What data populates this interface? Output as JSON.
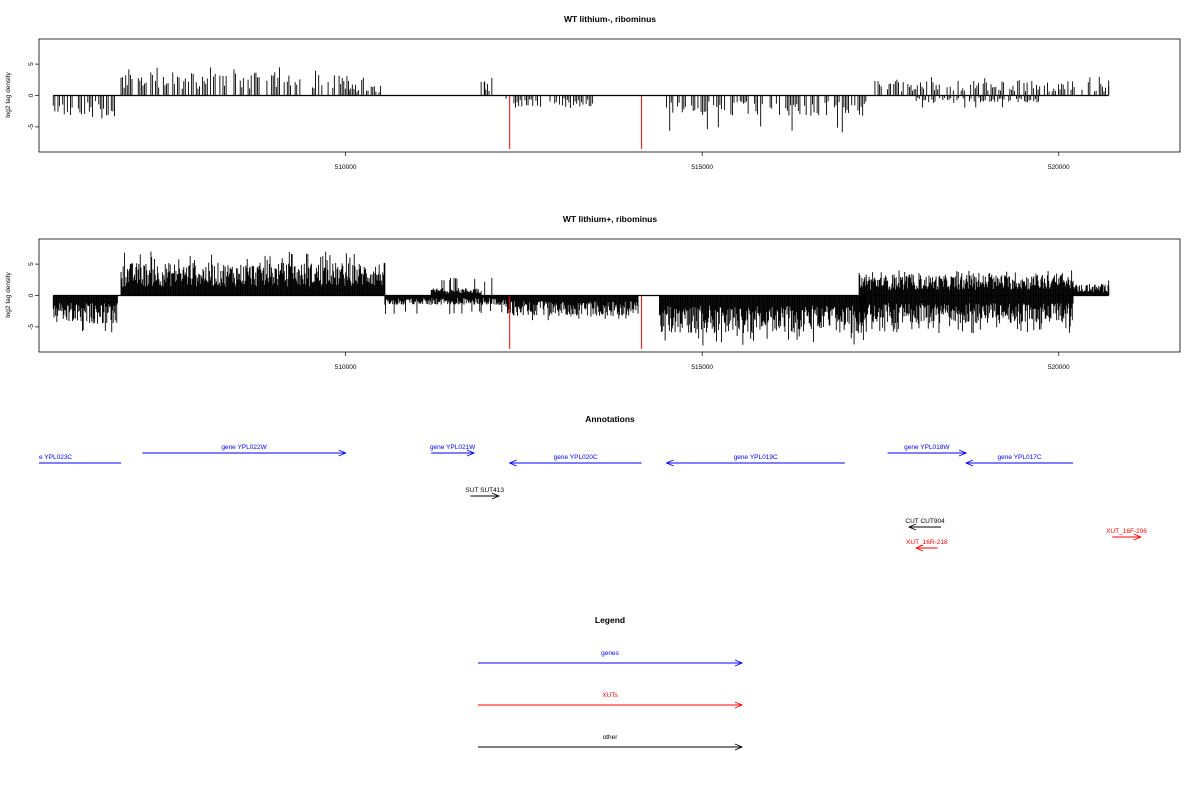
{
  "chart_data": [
    {
      "type": "bar",
      "title": "WT lithium-, ribominus",
      "ylabel": "log2 tag density",
      "xlim": [
        505700,
        521700
      ],
      "ylim": [
        -9,
        9
      ],
      "x_ticks": [
        510000,
        515000,
        520000
      ],
      "y_ticks": [
        -5,
        0,
        5
      ],
      "grid": false,
      "highlight_color": "#ff0000",
      "bar_color": "#000000",
      "highlights": [
        {
          "x": 512300,
          "y": -8.5
        },
        {
          "x": 514150,
          "y": -8.5
        }
      ],
      "density": [
        {
          "x1": 505900,
          "x2": 506800,
          "strand": "minus",
          "mean": 2.2,
          "max": 4.0
        },
        {
          "x1": 506850,
          "x2": 510050,
          "strand": "plus",
          "mean": 2.5,
          "max": 4.8
        },
        {
          "x1": 510050,
          "x2": 510500,
          "strand": "plus",
          "mean": 1.2,
          "max": 3.0
        },
        {
          "x1": 511900,
          "x2": 512050,
          "strand": "plus",
          "mean": 1.8,
          "max": 2.5
        },
        {
          "x1": 512250,
          "x2": 513500,
          "strand": "minus",
          "mean": 1.2,
          "max": 2.0
        },
        {
          "x1": 514500,
          "x2": 517300,
          "strand": "minus",
          "mean": 2.2,
          "max": 6.0
        },
        {
          "x1": 517400,
          "x2": 520700,
          "strand": "plus",
          "mean": 1.6,
          "max": 3.0
        },
        {
          "x1": 518000,
          "x2": 519800,
          "strand": "minus",
          "mean": 0.8,
          "max": 2.0
        }
      ]
    },
    {
      "type": "bar",
      "title": "WT lithium+, ribominus",
      "ylabel": "log2 tag density",
      "xlim": [
        505700,
        521700
      ],
      "ylim": [
        -9,
        9
      ],
      "x_ticks": [
        510000,
        515000,
        520000
      ],
      "y_ticks": [
        -5,
        0,
        5
      ],
      "grid": false,
      "highlight_color": "#ff0000",
      "bar_color": "#000000",
      "highlights": [
        {
          "x": 512300,
          "y": -8.5
        },
        {
          "x": 514150,
          "y": -8.5
        }
      ],
      "density": [
        {
          "x1": 505900,
          "x2": 506800,
          "strand": "minus",
          "mean": 3.0,
          "max": 6.0
        },
        {
          "x1": 506850,
          "x2": 510550,
          "strand": "plus",
          "mean": 3.5,
          "max": 7.0
        },
        {
          "x1": 510550,
          "x2": 512300,
          "strand": "minus",
          "mean": 1.0,
          "max": 3.0
        },
        {
          "x1": 511200,
          "x2": 511900,
          "strand": "plus",
          "mean": 0.8,
          "max": 3.0
        },
        {
          "x1": 512250,
          "x2": 514100,
          "strand": "minus",
          "mean": 2.2,
          "max": 4.0
        },
        {
          "x1": 514400,
          "x2": 517300,
          "strand": "minus",
          "mean": 4.0,
          "max": 8.0
        },
        {
          "x1": 517200,
          "x2": 520200,
          "strand": "plus",
          "mean": 2.2,
          "max": 4.0
        },
        {
          "x1": 517200,
          "x2": 520200,
          "strand": "minus",
          "mean": 3.0,
          "max": 6.0
        },
        {
          "x1": 520200,
          "x2": 520700,
          "strand": "plus",
          "mean": 1.2,
          "max": 2.0
        }
      ]
    }
  ],
  "annotations": {
    "title": "Annotations",
    "xlim": [
      505700,
      521700
    ],
    "features": [
      {
        "label": "e YPL023C",
        "x1": 505700,
        "x2": 506850,
        "dir": "none",
        "row": 1,
        "color": "#0000ff",
        "label_pos": "left"
      },
      {
        "label": "gene YPL022W",
        "x1": 507150,
        "x2": 510000,
        "dir": "right",
        "row": 0,
        "color": "#0000ff"
      },
      {
        "label": "gene YPL021W",
        "x1": 511200,
        "x2": 511800,
        "dir": "right",
        "row": 0,
        "color": "#0000ff"
      },
      {
        "label": "gene YPL020C",
        "x1": 512300,
        "x2": 514150,
        "dir": "left",
        "row": 1,
        "color": "#0000ff"
      },
      {
        "label": "gene YPL019C",
        "x1": 514500,
        "x2": 517000,
        "dir": "left",
        "row": 1,
        "color": "#0000ff"
      },
      {
        "label": "gene YPL018W",
        "x1": 517600,
        "x2": 518700,
        "dir": "right",
        "row": 0,
        "color": "#0000ff"
      },
      {
        "label": "gene YPL017C",
        "x1": 518700,
        "x2": 520200,
        "dir": "left",
        "row": 1,
        "color": "#0000ff"
      },
      {
        "label": "SUT SUT413",
        "x1": 511750,
        "x2": 512150,
        "dir": "right",
        "row": 2,
        "color": "#000000"
      },
      {
        "label": "CUT CUT904",
        "x1": 517900,
        "x2": 518350,
        "dir": "left",
        "row": 3,
        "color": "#000000"
      },
      {
        "label": "XUT_16R-218",
        "x1": 518000,
        "x2": 518300,
        "dir": "left",
        "row": 4,
        "color": "#ff0000"
      },
      {
        "label": "XUT_16F-206",
        "x1": 520750,
        "x2": 521150,
        "dir": "right",
        "row": 5,
        "color": "#ff0000"
      }
    ]
  },
  "legend": {
    "title": "Legend",
    "entries": [
      {
        "label": "genes",
        "color": "#0000ff"
      },
      {
        "label": "XUTs",
        "color": "#ff0000"
      },
      {
        "label": "other",
        "color": "#000000"
      }
    ]
  }
}
